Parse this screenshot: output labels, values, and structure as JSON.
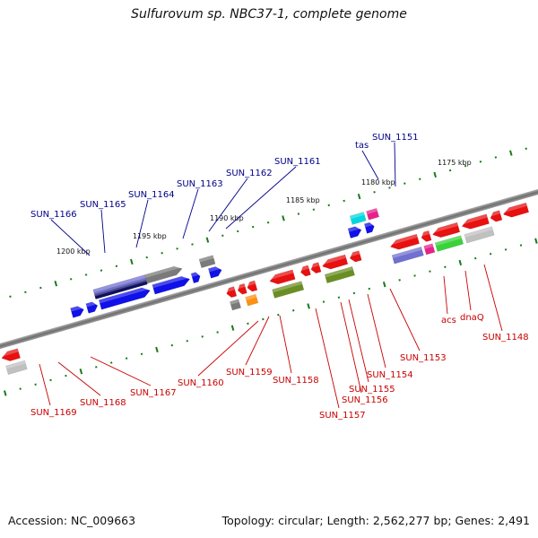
{
  "title": "Sulfurovum sp. NBC37-1, complete genome",
  "footer": {
    "accession": "Accession: NC_009663",
    "topology": "Topology: circular; Length: 2,562,277 bp; Genes: 2,491"
  },
  "scale_labels": [
    "1200 kbp",
    "1195 kbp",
    "1190 kbp",
    "1185 kbp",
    "1180 kbp",
    "1175 kbp"
  ],
  "top_gene_labels": [
    "SUN_1166",
    "SUN_1165",
    "SUN_1164",
    "SUN_1163",
    "SUN_1162",
    "SUN_1161",
    "tas",
    "SUN_1151"
  ],
  "bottom_gene_labels": [
    "SUN_1169",
    "SUN_1168",
    "SUN_1167",
    "SUN_1160",
    "SUN_1159",
    "SUN_1158",
    "SUN_1157",
    "SUN_1156",
    "SUN_1155",
    "SUN_1154",
    "SUN_1153",
    "acs",
    "dnaQ",
    "SUN_1148"
  ],
  "colors": {
    "top_label": "#00008b",
    "bottom_label": "#c80000",
    "backbone": "#808080",
    "tick": "#1a7a1a",
    "blue": "#1010e8",
    "red": "#e81010",
    "navy": "#4a4a9a",
    "gray": "#7a7a7a",
    "olive": "#6b8e23",
    "green": "#3ad23a",
    "cyan": "#00d8e0",
    "magenta": "#e8208a",
    "orange": "#ff9010",
    "lightgray": "#c0c0c0",
    "purple": "#7070d0"
  }
}
